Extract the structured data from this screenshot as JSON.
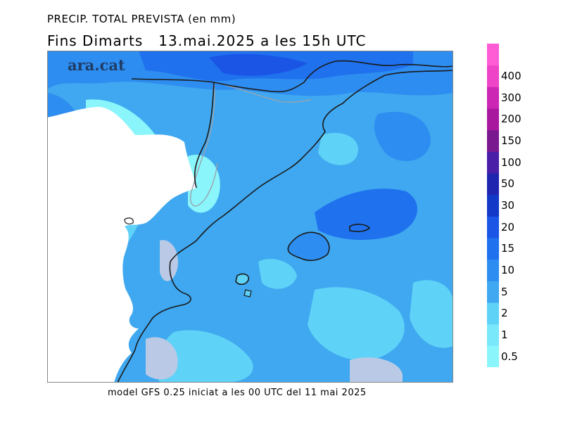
{
  "title_line1": "PRECIP. TOTAL PREVISTA (en mm)",
  "title_line2": "Fins Dimarts   13.mai.2025 a les 15h UTC",
  "footer": "model GFS 0.25 iniciat a les 00 UTC del 11 mai 2025",
  "watermark": "ara.cat",
  "legend": {
    "levels": [
      {
        "label": "0.5",
        "color": "#8af5fb"
      },
      {
        "label": "1",
        "color": "#7ae8fb"
      },
      {
        "label": "2",
        "color": "#5fd2f7"
      },
      {
        "label": "5",
        "color": "#3fa8f0"
      },
      {
        "label": "10",
        "color": "#2e8df0"
      },
      {
        "label": "15",
        "color": "#1f71ee"
      },
      {
        "label": "20",
        "color": "#1a55e6"
      },
      {
        "label": "30",
        "color": "#1238c8"
      },
      {
        "label": "50",
        "color": "#2025b0"
      },
      {
        "label": "100",
        "color": "#4a1ea6"
      },
      {
        "label": "150",
        "color": "#7a1890"
      },
      {
        "label": "200",
        "color": "#a8189e"
      },
      {
        "label": "300",
        "color": "#cc26b4"
      },
      {
        "label": "400",
        "color": "#ee44c8"
      },
      {
        "label": "",
        "color": "#ff5cd6"
      }
    ]
  }
}
